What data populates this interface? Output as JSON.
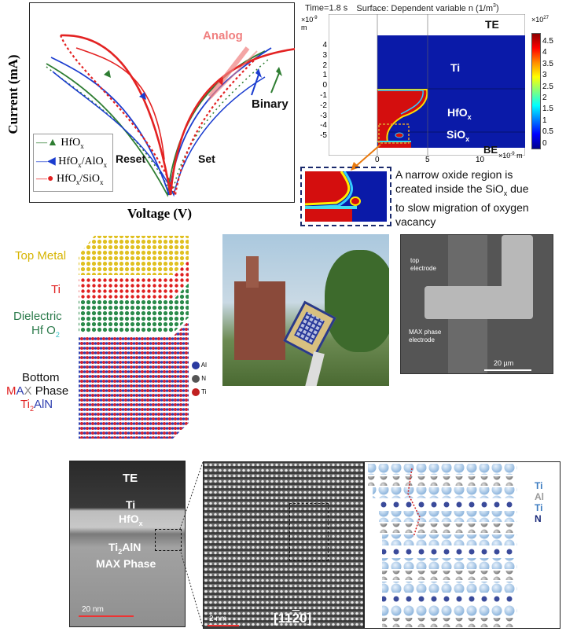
{
  "iv_plot": {
    "ylabel": "Current (mA)",
    "xlabel": "Voltage (V)",
    "annotations": {
      "analog": "Analog",
      "binary": "Binary",
      "reset": "Reset",
      "set": "Set"
    },
    "legend": [
      {
        "label": "HfO",
        "sub": "x",
        "rest": "",
        "color": "#2e7d32"
      },
      {
        "label": "HfO",
        "sub": "x",
        "rest": "/AlO",
        "sub2": "x",
        "color": "#1a3ccf"
      },
      {
        "label": "HfO",
        "sub": "x",
        "rest": "/SiO",
        "sub2": "x",
        "color": "#e32222"
      }
    ]
  },
  "sim_plot": {
    "title_left": "Time=1.8 s",
    "title_right": "Surface: Dependent variable n (1/m",
    "title_sup": "3",
    "title_close": ")",
    "y_unit_exp": "×10",
    "y_unit_sup": "-9",
    "y_unit": "m",
    "x_unit_exp": "×10",
    "x_unit_sup": "-9",
    "x_unit": "m",
    "y_ticks": [
      "4",
      "3",
      "2",
      "1",
      "0",
      "-1",
      "-2",
      "-3",
      "-4",
      "-5"
    ],
    "x_ticks": [
      "0",
      "5",
      "10"
    ],
    "colorbar_exp": "×10",
    "colorbar_sup": "27",
    "colorbar_ticks": [
      "4.5",
      "4",
      "3.5",
      "3",
      "2.5",
      "2",
      "1.5",
      "1",
      "0.5",
      "0"
    ],
    "labels": {
      "te": "TE",
      "ti": "Ti",
      "hfox": "HfO",
      "hfox_sub": "x",
      "siox": "SiO",
      "siox_sub": "x",
      "be": "BE"
    },
    "caption_line1": "A narrow oxide region is",
    "caption_line2a": "created inside the SiO",
    "caption_sub": "x",
    "caption_line2b": " due",
    "caption_line3": "to slow migration of oxygen",
    "caption_line4": "vacancy"
  },
  "crystal": {
    "top_metal": "Top Metal",
    "ti": "Ti",
    "dielectric": "Dielectric",
    "hfo": "Hf O",
    "hfo_sub": "2",
    "bottom": "Bottom",
    "max_m": "M",
    "max_a": "A",
    "max_x": "X",
    "phase": " Phase",
    "ti2": "Ti",
    "ti2_sub": "2",
    "aln": "AlN",
    "legend": [
      "Al",
      "N",
      "Ti"
    ]
  },
  "sem": {
    "top_electrode_1": "top",
    "top_electrode_2": "electrode",
    "max_electrode_1": "MAX phase",
    "max_electrode_2": "electrode",
    "scale": "20 µm"
  },
  "tem": {
    "te": "TE",
    "ti": "Ti",
    "hfox": "HfO",
    "hfox_sub": "x",
    "ti2aln_a": "Ti",
    "ti2aln_sub": "2",
    "ti2aln_b": "AlN",
    "max_phase": "MAX Phase",
    "scale_left": "20 nm",
    "scale_mid": "2 nm",
    "zone_axis": "[11",
    "zone_bar": "2",
    "zone_end": "0]"
  },
  "atoms_legend": [
    "Ti",
    "Al",
    "Ti",
    "N"
  ],
  "colors": {
    "red": "#e32222",
    "blue": "#1a3ccf",
    "green": "#2e7d32",
    "te_navy": "#0b1f8c"
  }
}
